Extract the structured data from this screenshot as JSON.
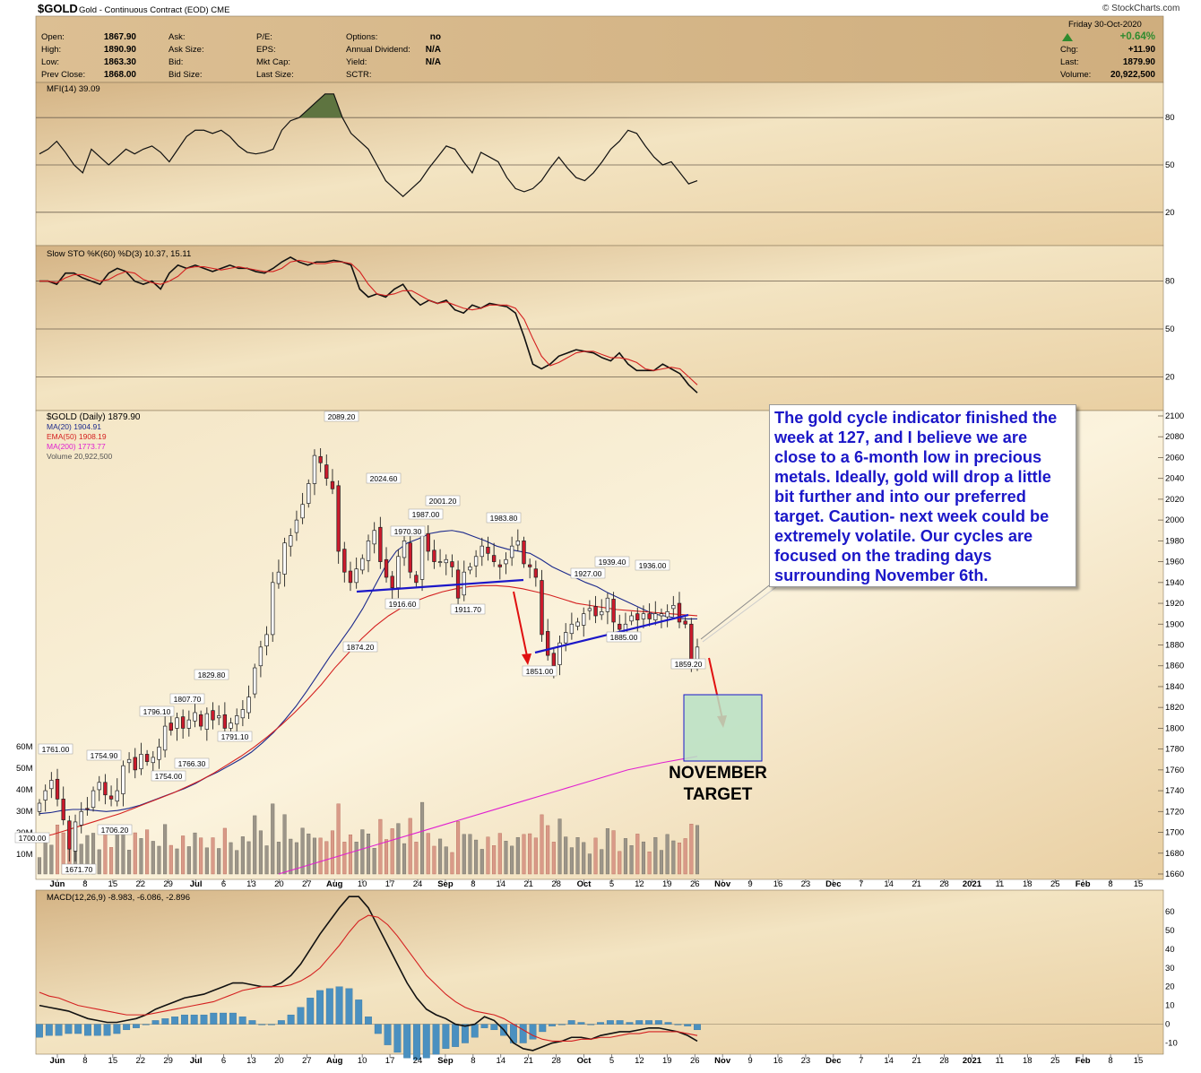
{
  "header": {
    "symbol": "$GOLD",
    "name": "Gold - Continuous Contract (EOD)",
    "exchange": "CME",
    "date": "Friday  30-Oct-2020",
    "brand": "© StockCharts.com",
    "col1": [
      {
        "label": "Open:",
        "value": "1867.90"
      },
      {
        "label": "High:",
        "value": "1890.90"
      },
      {
        "label": "Low:",
        "value": "1863.30"
      },
      {
        "label": "Prev Close:",
        "value": "1868.00"
      }
    ],
    "col2": [
      {
        "label": "Ask:"
      },
      {
        "label": "Ask Size:"
      },
      {
        "label": "Bid:"
      },
      {
        "label": "Bid Size:"
      }
    ],
    "col3": [
      {
        "label": "P/E:"
      },
      {
        "label": "EPS:"
      },
      {
        "label": "Mkt Cap:"
      },
      {
        "label": "Last Size:"
      }
    ],
    "col4": [
      {
        "label": "Options:",
        "value": "no"
      },
      {
        "label": "Annual Dividend:",
        "value": "N/A"
      },
      {
        "label": "Yield:",
        "value": "N/A"
      },
      {
        "label": "SCTR:",
        "value": ""
      }
    ],
    "change_pct": "+0.64%",
    "right": [
      {
        "label": "Chg:",
        "value": "+11.90"
      },
      {
        "label": "Last:",
        "value": "1879.90"
      },
      {
        "label": "Volume:",
        "value": "20,922,500"
      }
    ]
  },
  "colors": {
    "panel_bg": "#f2dfb8",
    "header_bg": "#d9b98a",
    "up_candle": "#ffffff",
    "down_candle": "#cc1a2c",
    "ma20": "#1c2a8c",
    "ema50": "#d42020",
    "ma200": "#e020d0",
    "annotation_blue": "#1b17c8",
    "mfi_fill": "#5e7440",
    "macd_hist": "#4a90c0"
  },
  "annotations": {
    "callout": "The gold cycle indicator finished the week at 127, and I believe we are close to a 6-month low in precious metals. Ideally, gold will drop a little bit further and into our preferred target. Caution- next week could be extremely volatile. Our cycles are focused on the trading days surrounding November 6th.",
    "target_line1": "NOVEMBER",
    "target_line2": "TARGET"
  },
  "chart_data": [
    {
      "type": "line",
      "panel": "MFI",
      "legend": "MFI(14) 39.09",
      "y_ticks": [
        80,
        50,
        20
      ],
      "overbought": 80,
      "ylim": [
        0,
        100
      ],
      "values": [
        57,
        60,
        65,
        58,
        50,
        45,
        60,
        55,
        50,
        55,
        60,
        57,
        60,
        62,
        58,
        52,
        60,
        68,
        72,
        72,
        70,
        72,
        68,
        62,
        58,
        57,
        58,
        60,
        72,
        78,
        80,
        85,
        90,
        95,
        95,
        80,
        70,
        65,
        60,
        50,
        40,
        35,
        30,
        35,
        40,
        48,
        55,
        62,
        60,
        52,
        45,
        58,
        55,
        52,
        42,
        35,
        33,
        35,
        40,
        48,
        55,
        48,
        42,
        40,
        45,
        52,
        60,
        65,
        72,
        70,
        62,
        55,
        50,
        52,
        45,
        38,
        40
      ]
    },
    {
      "type": "line",
      "panel": "Slow STO",
      "legend": "Slow STO %K(60) %D(3) 10.37, 15.11",
      "y_ticks": [
        80,
        50,
        20
      ],
      "ylim": [
        0,
        100
      ],
      "series": [
        {
          "name": "%K",
          "values": [
            80,
            80,
            78,
            85,
            85,
            82,
            80,
            78,
            85,
            88,
            86,
            80,
            78,
            80,
            75,
            85,
            90,
            88,
            90,
            88,
            86,
            88,
            90,
            88,
            88,
            86,
            85,
            88,
            92,
            95,
            92,
            90,
            92,
            92,
            93,
            92,
            90,
            75,
            70,
            72,
            70,
            75,
            78,
            70,
            65,
            68,
            66,
            68,
            62,
            60,
            65,
            63,
            66,
            65,
            64,
            60,
            45,
            28,
            25,
            28,
            33,
            35,
            37,
            36,
            35,
            32,
            30,
            35,
            28,
            24,
            24,
            24,
            28,
            25,
            22,
            15,
            10
          ]
        },
        {
          "name": "%D",
          "values": [
            80,
            80,
            79,
            82,
            84,
            84,
            82,
            80,
            81,
            84,
            86,
            85,
            81,
            79,
            78,
            80,
            83,
            88,
            89,
            89,
            88,
            87,
            88,
            89,
            88,
            87,
            86,
            86,
            88,
            92,
            93,
            92,
            91,
            91,
            92,
            92,
            91,
            86,
            78,
            72,
            71,
            72,
            74,
            74,
            71,
            68,
            66,
            67,
            65,
            63,
            62,
            63,
            65,
            65,
            65,
            63,
            56,
            44,
            33,
            27,
            29,
            32,
            35,
            36,
            36,
            34,
            32,
            32,
            31,
            29,
            25,
            24,
            25,
            26,
            25,
            20,
            15
          ]
        }
      ]
    },
    {
      "type": "candlestick",
      "panel": "price",
      "legend": [
        "$GOLD (Daily) 1879.90",
        "MA(20) 1904.91",
        "EMA(50) 1908.19",
        "MA(200) 1773.77",
        "Volume 20,922,500"
      ],
      "ylim": [
        1660,
        2100
      ],
      "y_ticks": [
        1660,
        1680,
        1700,
        1720,
        1740,
        1760,
        1780,
        1800,
        1820,
        1840,
        1860,
        1880,
        1900,
        1920,
        1940,
        1960,
        1980,
        2000,
        2020,
        2040,
        2060,
        2080,
        2100
      ],
      "volume_ticks": [
        "10M",
        "20M",
        "30M",
        "40M",
        "50M",
        "60M"
      ],
      "x_labels": [
        "Jun",
        "8",
        "15",
        "22",
        "29",
        "Jul",
        "6",
        "13",
        "20",
        "27",
        "Aug",
        "10",
        "17",
        "24",
        "Sep",
        "8",
        "14",
        "21",
        "28",
        "Oct",
        "5",
        "12",
        "19",
        "26",
        "Nov",
        "9",
        "16",
        "23",
        "Dec",
        "7",
        "14",
        "21",
        "28",
        "2021",
        "11",
        "18",
        "25",
        "Feb",
        "8",
        "15"
      ],
      "close": [
        1728,
        1740,
        1750,
        1732,
        1712,
        1684,
        1710,
        1720,
        1722,
        1740,
        1748,
        1736,
        1732,
        1740,
        1764,
        1770,
        1760,
        1775,
        1768,
        1772,
        1782,
        1802,
        1798,
        1810,
        1800,
        1808,
        1815,
        1802,
        1814,
        1808,
        1812,
        1800,
        1805,
        1812,
        1818,
        1830,
        1858,
        1878,
        1890,
        1940,
        1950,
        1978,
        1985,
        2000,
        2015,
        2035,
        2062,
        2055,
        2040,
        2030,
        1970,
        1950,
        1940,
        1953,
        1963,
        1980,
        1990,
        1960,
        1945,
        1935,
        1965,
        1980,
        1950,
        1940,
        1985,
        1970,
        1960,
        1960,
        1962,
        1955,
        1925,
        1950,
        1955,
        1965,
        1975,
        1968,
        1960,
        1955,
        1962,
        1975,
        1980,
        1958,
        1955,
        1945,
        1890,
        1870,
        1860,
        1882,
        1892,
        1900,
        1902,
        1910,
        1915,
        1908,
        1912,
        1925,
        1902,
        1895,
        1900,
        1908,
        1904,
        1910,
        1905,
        1910,
        1910,
        1912,
        1918,
        1902,
        1900,
        1865,
        1878
      ],
      "price_labels": [
        "1761.00",
        "1754.90",
        "1700.00",
        "1671.70",
        "1706.20",
        "1796.10",
        "1754.00",
        "1807.70",
        "1766.30",
        "1829.80",
        "1791.10",
        "2089.20",
        "2024.60",
        "1874.20",
        "1970.30",
        "1987.00",
        "2001.20",
        "1916.60",
        "1911.70",
        "1983.80",
        "1851.00",
        "1927.00",
        "1939.40",
        "1936.00",
        "1885.00",
        "1859.20"
      ],
      "series": [
        {
          "name": "MA(20)",
          "values": [
            1718,
            1719,
            1721,
            1722,
            1722,
            1721,
            1720,
            1721,
            1723,
            1726,
            1730,
            1734,
            1738,
            1742,
            1747,
            1753,
            1758,
            1764,
            1770,
            1777,
            1786,
            1796,
            1808,
            1821,
            1836,
            1852,
            1868,
            1883,
            1898,
            1915,
            1935,
            1955,
            1970,
            1978,
            1982,
            1987,
            1989,
            1990,
            1988,
            1984,
            1980,
            1975,
            1972,
            1970,
            1968,
            1962,
            1955,
            1950,
            1945,
            1940,
            1936,
            1930,
            1925,
            1920,
            1915,
            1910,
            1908,
            1906,
            1905,
            1905
          ]
        },
        {
          "name": "EMA(50)",
          "values": [
            1695,
            1698,
            1702,
            1706,
            1710,
            1714,
            1718,
            1723,
            1728,
            1733,
            1738,
            1744,
            1750,
            1757,
            1765,
            1773,
            1782,
            1792,
            1803,
            1815,
            1828,
            1842,
            1858,
            1872,
            1886,
            1898,
            1908,
            1916,
            1922,
            1927,
            1931,
            1934,
            1936,
            1937,
            1937,
            1936,
            1934,
            1931,
            1928,
            1924,
            1920,
            1918,
            1916,
            1914,
            1913,
            1912,
            1911,
            1910,
            1909,
            1908
          ]
        },
        {
          "name": "MA(200)",
          "values": [
            1660,
            1670,
            1680,
            1690,
            1700,
            1710,
            1720,
            1730,
            1740,
            1750,
            1760,
            1767,
            1773
          ]
        }
      ]
    },
    {
      "type": "line",
      "panel": "MACD",
      "legend": "MACD(12,26,9) -8.983, -6.086, -2.896",
      "y_ticks": [
        60,
        50,
        40,
        30,
        20,
        10,
        0,
        -10
      ],
      "ylim": [
        -15,
        70
      ],
      "series": [
        {
          "name": "MACD",
          "values": [
            10,
            9,
            8,
            7,
            5,
            3,
            2,
            1,
            1,
            2,
            3,
            5,
            8,
            10,
            12,
            14,
            15,
            16,
            18,
            20,
            22,
            22,
            21,
            20,
            20,
            22,
            26,
            32,
            40,
            48,
            55,
            62,
            68,
            68,
            62,
            52,
            42,
            32,
            22,
            14,
            8,
            5,
            3,
            0,
            -1,
            0,
            4,
            2,
            -3,
            -10,
            -13,
            -14,
            -12,
            -10,
            -9,
            -7,
            -7,
            -8,
            -6,
            -5,
            -4,
            -4,
            -3,
            -2,
            -2,
            -3,
            -4,
            -6,
            -9
          ]
        },
        {
          "name": "Signal",
          "values": [
            17,
            15,
            14,
            12,
            10,
            9,
            8,
            7,
            6,
            5,
            5,
            5,
            6,
            7,
            8,
            9,
            10,
            11,
            12,
            14,
            16,
            18,
            19,
            20,
            20,
            20,
            21,
            23,
            26,
            30,
            36,
            42,
            49,
            55,
            58,
            57,
            53,
            47,
            40,
            33,
            26,
            21,
            16,
            12,
            9,
            7,
            6,
            5,
            3,
            0,
            -3,
            -6,
            -8,
            -9,
            -9,
            -9,
            -8,
            -8,
            -7,
            -7,
            -6,
            -5,
            -5,
            -4,
            -4,
            -4,
            -4,
            -5,
            -6
          ]
        }
      ]
    }
  ]
}
